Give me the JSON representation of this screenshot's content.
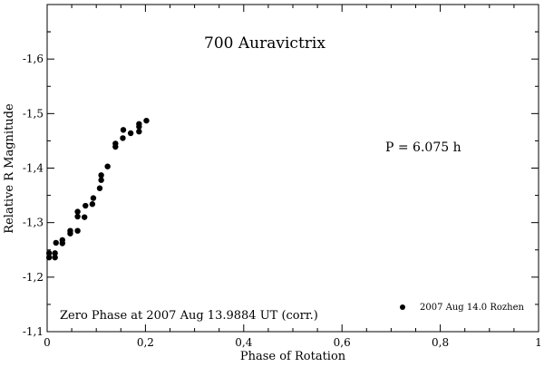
{
  "chart_data": {
    "type": "scatter",
    "title": "700 Auravictrix",
    "xlabel": "Phase of Rotation",
    "ylabel": "Relative R Magnitude",
    "xlim": [
      0,
      1
    ],
    "ylim": [
      -1.1,
      -1.7
    ],
    "y_axis_inverted": true,
    "grid": false,
    "x_ticks": [
      "0",
      "0,2",
      "0,4",
      "0,6",
      "0,8",
      "1"
    ],
    "x_tick_values": [
      0,
      0.2,
      0.4,
      0.6,
      0.8,
      1.0
    ],
    "y_ticks": [
      "-1,1",
      "-1,2",
      "-1,3",
      "-1,4",
      "-1,5",
      "-1,6"
    ],
    "y_tick_values": [
      -1.1,
      -1.2,
      -1.3,
      -1.4,
      -1.5,
      -1.6
    ],
    "annotations": {
      "period": "P = 6.075 h",
      "zero_phase": "Zero Phase at 2007 Aug 13.9884 UT (corr.)"
    },
    "legend_placement": "bottom-right",
    "series": [
      {
        "name": "2007 Aug 14.0 Rozhen",
        "color": "#000000",
        "marker": "filled-circle",
        "points": [
          [
            0.004,
            -1.236
          ],
          [
            0.004,
            -1.244
          ],
          [
            0.016,
            -1.236
          ],
          [
            0.016,
            -1.244
          ],
          [
            0.018,
            -1.263
          ],
          [
            0.031,
            -1.262
          ],
          [
            0.031,
            -1.268
          ],
          [
            0.047,
            -1.28
          ],
          [
            0.047,
            -1.285
          ],
          [
            0.062,
            -1.285
          ],
          [
            0.062,
            -1.311
          ],
          [
            0.062,
            -1.32
          ],
          [
            0.076,
            -1.31
          ],
          [
            0.078,
            -1.331
          ],
          [
            0.092,
            -1.334
          ],
          [
            0.094,
            -1.345
          ],
          [
            0.107,
            -1.363
          ],
          [
            0.11,
            -1.378
          ],
          [
            0.11,
            -1.387
          ],
          [
            0.123,
            -1.403
          ],
          [
            0.139,
            -1.439
          ],
          [
            0.139,
            -1.445
          ],
          [
            0.154,
            -1.455
          ],
          [
            0.155,
            -1.47
          ],
          [
            0.17,
            -1.464
          ],
          [
            0.187,
            -1.467
          ],
          [
            0.187,
            -1.476
          ],
          [
            0.187,
            -1.481
          ],
          [
            0.202,
            -1.487
          ]
        ]
      }
    ]
  }
}
